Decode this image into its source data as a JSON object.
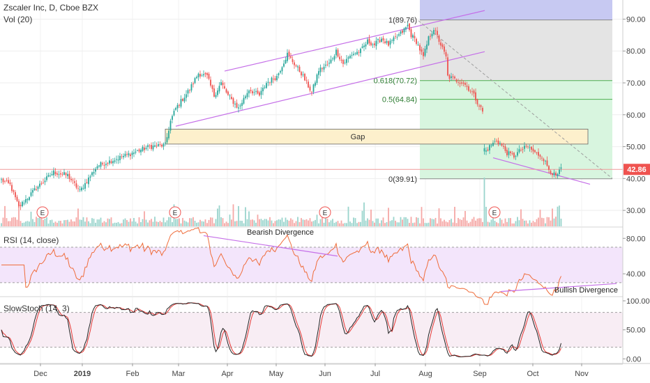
{
  "chart_data": {
    "type": "candlestick",
    "title": "Zscaler Inc, D, Cboe BZX",
    "volume_label": "Vol (20)",
    "last_price": "42.86",
    "price_axis": {
      "range": [
        25,
        96
      ],
      "ticks": [
        90,
        80,
        70,
        60,
        50,
        40,
        30
      ],
      "tick_labels": [
        "90.00",
        "80.00",
        "70.00",
        "60.00",
        "50.00",
        "40.00",
        "30.00"
      ]
    },
    "x_axis": {
      "labels": [
        "Dec",
        "2019",
        "Feb",
        "Mar",
        "Apr",
        "May",
        "Jun",
        "Jul",
        "Aug",
        "Sep",
        "Oct",
        "Nov"
      ]
    },
    "price_path": [
      {
        "i": 0,
        "p": 39.5
      },
      {
        "i": 5,
        "p": 38
      },
      {
        "i": 10,
        "p": 31
      },
      {
        "i": 20,
        "p": 37
      },
      {
        "i": 30,
        "p": 42
      },
      {
        "i": 38,
        "p": 41
      },
      {
        "i": 45,
        "p": 36
      },
      {
        "i": 55,
        "p": 44
      },
      {
        "i": 65,
        "p": 46
      },
      {
        "i": 75,
        "p": 48
      },
      {
        "i": 85,
        "p": 50
      },
      {
        "i": 94,
        "p": 50.5
      },
      {
        "i": 97,
        "p": 58
      },
      {
        "i": 100,
        "p": 62
      },
      {
        "i": 108,
        "p": 68
      },
      {
        "i": 113,
        "p": 73
      },
      {
        "i": 118,
        "p": 72
      },
      {
        "i": 122,
        "p": 66
      },
      {
        "i": 126,
        "p": 70
      },
      {
        "i": 130,
        "p": 66
      },
      {
        "i": 136,
        "p": 62
      },
      {
        "i": 142,
        "p": 68
      },
      {
        "i": 148,
        "p": 66
      },
      {
        "i": 152,
        "p": 70
      },
      {
        "i": 158,
        "p": 72
      },
      {
        "i": 164,
        "p": 79
      },
      {
        "i": 168,
        "p": 76
      },
      {
        "i": 172,
        "p": 73
      },
      {
        "i": 176,
        "p": 69
      },
      {
        "i": 178,
        "p": 67
      },
      {
        "i": 182,
        "p": 74
      },
      {
        "i": 188,
        "p": 76
      },
      {
        "i": 192,
        "p": 80
      },
      {
        "i": 196,
        "p": 76
      },
      {
        "i": 201,
        "p": 79
      },
      {
        "i": 206,
        "p": 80
      },
      {
        "i": 210,
        "p": 83
      },
      {
        "i": 214,
        "p": 82
      },
      {
        "i": 218,
        "p": 84
      },
      {
        "i": 222,
        "p": 82
      },
      {
        "i": 226,
        "p": 84
      },
      {
        "i": 230,
        "p": 86
      },
      {
        "i": 233,
        "p": 88
      },
      {
        "i": 235,
        "p": 85
      },
      {
        "i": 238,
        "p": 83
      },
      {
        "i": 242,
        "p": 78
      },
      {
        "i": 245,
        "p": 84
      },
      {
        "i": 248,
        "p": 87
      },
      {
        "i": 252,
        "p": 82
      },
      {
        "i": 255,
        "p": 78
      },
      {
        "i": 256,
        "p": 72
      },
      {
        "i": 260,
        "p": 71
      },
      {
        "i": 265,
        "p": 70
      },
      {
        "i": 270,
        "p": 67
      },
      {
        "i": 274,
        "p": 63
      },
      {
        "i": 276,
        "p": 61
      },
      {
        "i": 277,
        "p": 48
      },
      {
        "i": 280,
        "p": 50
      },
      {
        "i": 284,
        "p": 52
      },
      {
        "i": 286,
        "p": 51
      },
      {
        "i": 290,
        "p": 48
      },
      {
        "i": 294,
        "p": 47
      },
      {
        "i": 298,
        "p": 49
      },
      {
        "i": 302,
        "p": 50
      },
      {
        "i": 306,
        "p": 48
      },
      {
        "i": 310,
        "p": 47
      },
      {
        "i": 314,
        "p": 43
      },
      {
        "i": 318,
        "p": 40.5
      },
      {
        "i": 320,
        "p": 42
      },
      {
        "i": 321,
        "p": 43
      }
    ],
    "annotations": {
      "gap_label": "Gap",
      "fib_labels": [
        "1(89.76)",
        "0.618(70.72)",
        "0.5(64.84)",
        "0(39.91)"
      ],
      "fib_levels": [
        89.76,
        70.72,
        64.84,
        39.91
      ],
      "gap_range": [
        50.8,
        55.5
      ],
      "earnings_marker": "E",
      "bearish_label": "Bearish Divergence",
      "bullish_label": "Bullish Divergence"
    },
    "rsi": {
      "label": "RSI (14, close)",
      "ticks": [
        80,
        40
      ],
      "tick_labels": [
        "80.00",
        "40.00"
      ],
      "range": [
        15,
        92
      ],
      "band": [
        30,
        70
      ]
    },
    "stoch": {
      "label": "SlowStoch (14, 3)",
      "ticks": [
        100,
        50,
        0
      ],
      "tick_labels": [
        "100.00",
        "50.00",
        "0.00"
      ],
      "range": [
        -8,
        106
      ],
      "band": [
        20,
        80
      ]
    },
    "colors": {
      "up": "#26a69a",
      "down": "#ef5350",
      "channel": "#c56fe8",
      "fib_line": "#4caf50",
      "last_price_bg": "#ef5350",
      "rsi_band": "#f3e5fb",
      "stoch_band": "#f8edf4",
      "gap_fill": "#fdf0cc",
      "fib_top_fill": "#c7c9f2",
      "fib_gray_fill": "#e4e4e4",
      "fib_green_fill": "#d8f5df"
    }
  }
}
